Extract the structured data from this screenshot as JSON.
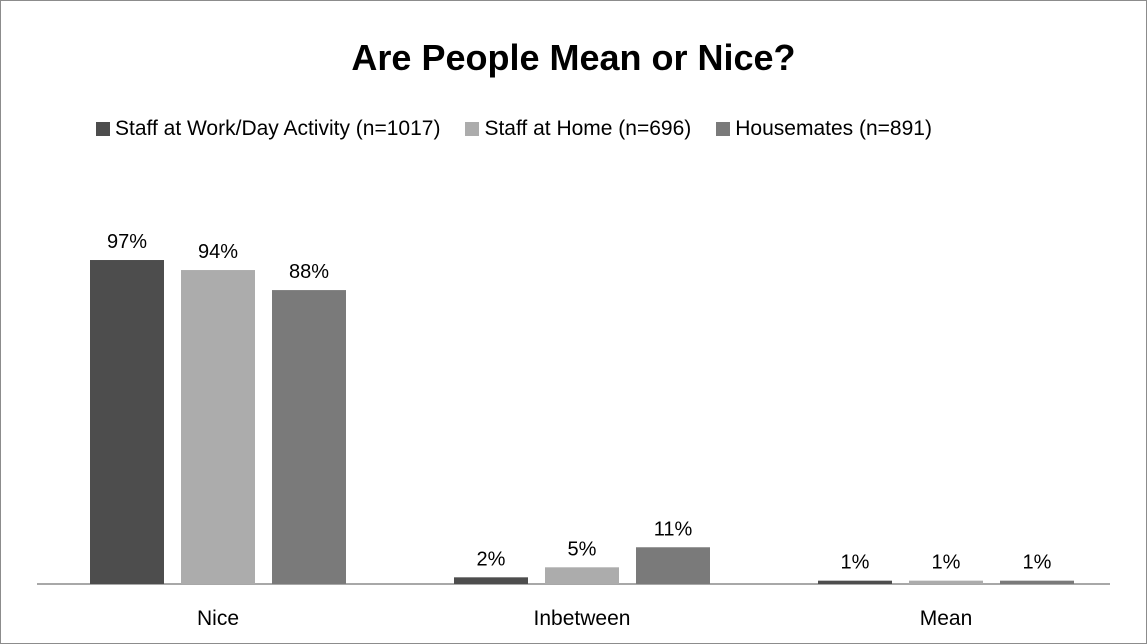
{
  "chart_data": {
    "type": "bar",
    "title": "Are People Mean or Nice?",
    "categories": [
      "Nice",
      "Inbetween",
      "Mean"
    ],
    "series": [
      {
        "name": "Staff at Work/Day Activity (n=1017)",
        "values": [
          97,
          2,
          1
        ],
        "labels": [
          "97%",
          "2%",
          "1%"
        ],
        "color": "#4d4d4d"
      },
      {
        "name": "Staff at Home (n=696)",
        "values": [
          94,
          5,
          1
        ],
        "labels": [
          "94%",
          "5%",
          "1%"
        ],
        "color": "#acacac"
      },
      {
        "name": "Housemates (n=891)",
        "values": [
          88,
          11,
          1
        ],
        "labels": [
          "88%",
          "11%",
          "1%"
        ],
        "color": "#7a7a7a"
      }
    ],
    "ylim": [
      0,
      100
    ],
    "grid": false,
    "legend_position": "top",
    "axis_color": "#8c8c8c"
  }
}
